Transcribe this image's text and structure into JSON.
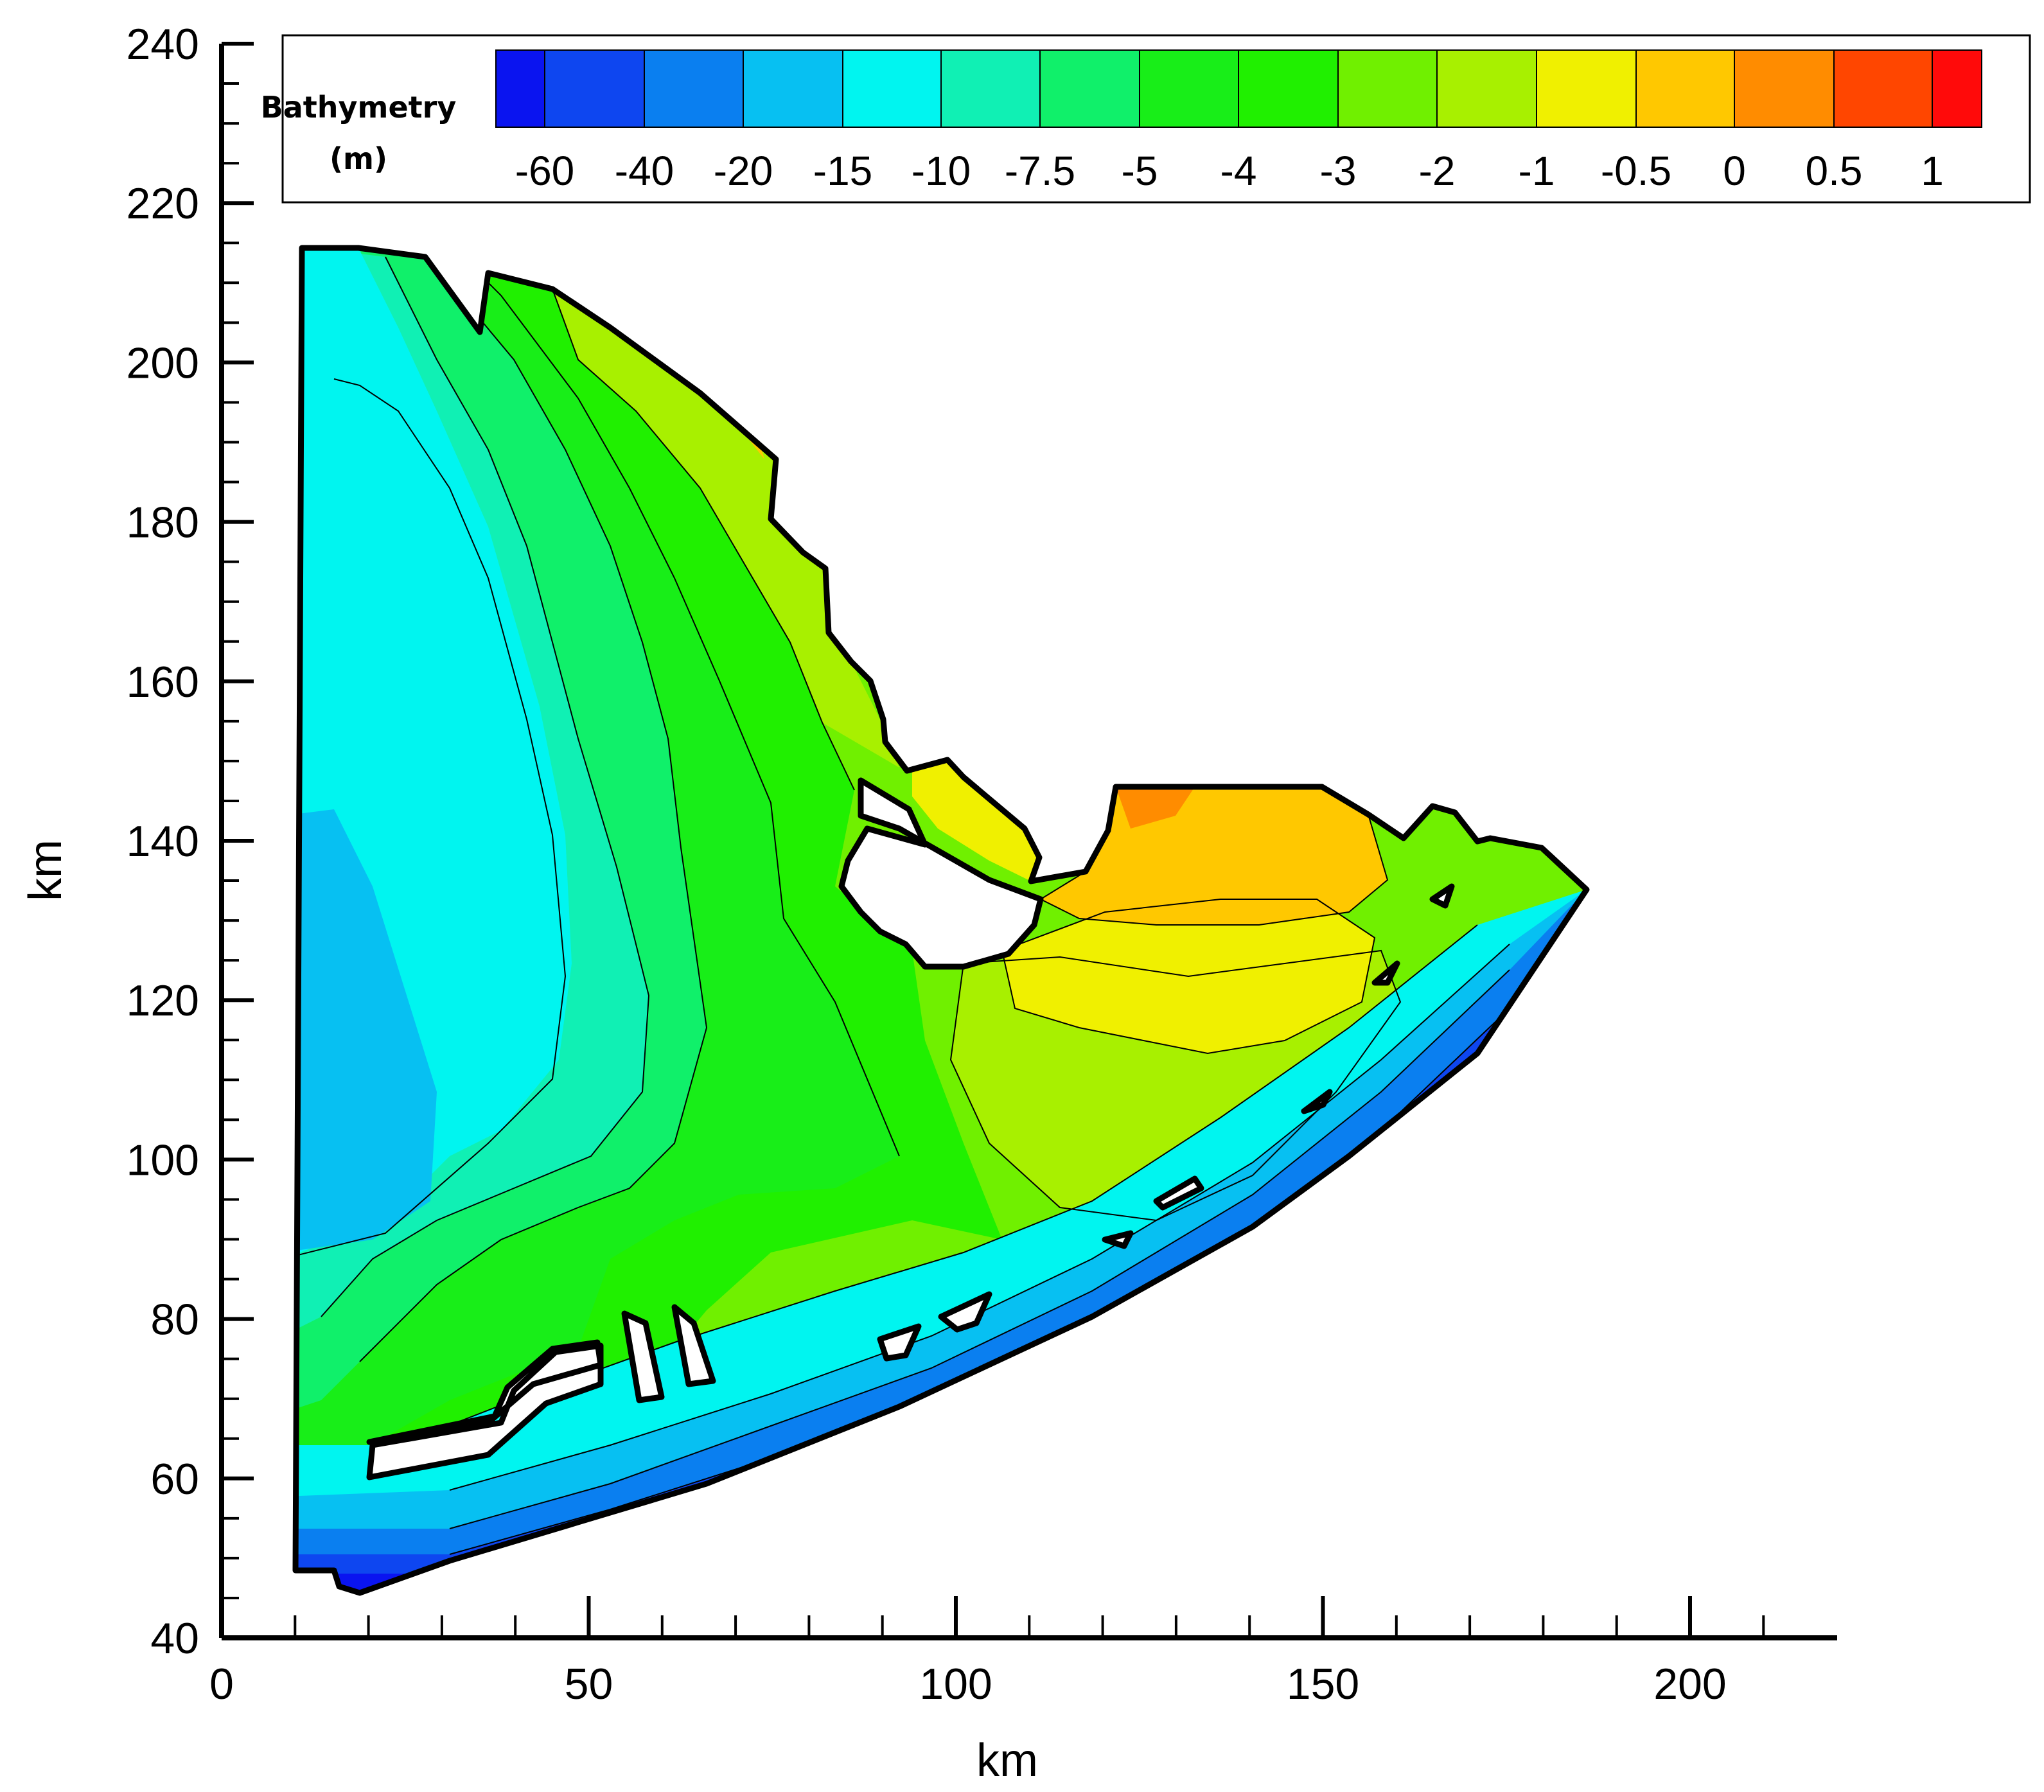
{
  "chart_data": {
    "type": "contour map",
    "xlabel": "km",
    "ylabel": "km",
    "xlim": [
      0,
      220
    ],
    "ylim": [
      40,
      240
    ],
    "x_ticks": [
      "0",
      "50",
      "100",
      "150",
      "200"
    ],
    "y_ticks": [
      "40",
      "60",
      "80",
      "100",
      "120",
      "140",
      "160",
      "180",
      "200",
      "220",
      "240"
    ],
    "legend": {
      "title_line1": "Bathymetry",
      "title_line2": "(m)",
      "levels": [
        "-60",
        "-40",
        "-20",
        "-15",
        "-10",
        "-7.5",
        "-5",
        "-4",
        "-3",
        "-2",
        "-1",
        "-0.5",
        "0",
        "0.5",
        "1"
      ],
      "colors": [
        "#0a14f0",
        "#0e46f0",
        "#0a7ff0",
        "#07c0f2",
        "#00f5f0",
        "#10f0b4",
        "#10f06a",
        "#18ee18",
        "#20f000",
        "#70f000",
        "#a8f000",
        "#f0f000",
        "#ffc800",
        "#ff8c00",
        "#ff4600",
        "#ff0a0a"
      ],
      "placement": "top"
    },
    "grid": false
  }
}
